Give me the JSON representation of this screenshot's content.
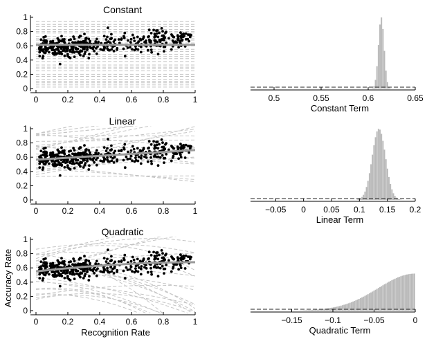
{
  "figure": {
    "ylabel": "Accuracy Rate",
    "xlabel": "Recognition Rate"
  },
  "chart_data": [
    {
      "type": "scatter",
      "title": "Constant",
      "xlabel": "",
      "ylabel": "",
      "xlim": [
        0,
        1
      ],
      "ylim": [
        0,
        1
      ],
      "xticks": [
        "0",
        "0.2",
        "0.4",
        "0.6",
        "0.8",
        "1"
      ],
      "yticks": [
        "0",
        "0.2",
        "0.4",
        "0.6",
        "0.8",
        "1"
      ],
      "fit": {
        "kind": "constant",
        "params": [
          0.615
        ]
      },
      "draws_model": "constant"
    },
    {
      "type": "bar",
      "title": "",
      "xlabel": "Constant Term",
      "xlim": [
        0.475,
        0.65
      ],
      "xticks": [
        "0.5",
        "0.55",
        "0.6",
        "0.65"
      ],
      "distribution": {
        "mean": 0.614,
        "sd": 0.003
      },
      "prior_level": 0.02
    },
    {
      "type": "scatter",
      "title": "Linear",
      "xlabel": "",
      "ylabel": "",
      "xlim": [
        0,
        1
      ],
      "ylim": [
        0,
        1
      ],
      "xticks": [
        "0",
        "0.2",
        "0.4",
        "0.6",
        "0.8",
        "1"
      ],
      "yticks": [
        "0",
        "0.2",
        "0.4",
        "0.6",
        "0.8",
        "1"
      ],
      "fit": {
        "kind": "linear",
        "params": [
          0.565,
          0.135
        ]
      },
      "draws_model": "linear"
    },
    {
      "type": "bar",
      "title": "",
      "xlabel": "Linear Term",
      "xlim": [
        -0.095,
        0.2
      ],
      "xticks": [
        "−0.05",
        "0",
        "0.05",
        "0.1",
        "0.15",
        "0.2"
      ],
      "distribution": {
        "mean": 0.135,
        "sd": 0.012
      },
      "prior_level": 0.02
    },
    {
      "type": "scatter",
      "title": "Quadratic",
      "xlabel": "Recognition Rate",
      "ylabel": "Accuracy Rate",
      "xlim": [
        0,
        1
      ],
      "ylim": [
        0,
        1
      ],
      "xticks": [
        "0",
        "0.2",
        "0.4",
        "0.6",
        "0.8",
        "1"
      ],
      "yticks": [
        "0",
        "0.2",
        "0.4",
        "0.6",
        "0.8",
        "1"
      ],
      "fit": {
        "kind": "quadratic",
        "params": [
          0.55,
          0.25,
          -0.12
        ]
      },
      "draws_model": "quadratic"
    },
    {
      "type": "bar",
      "title": "",
      "xlabel": "Quadratic Term",
      "xlim": [
        -0.2,
        0
      ],
      "xticks": [
        "−0.15",
        "−0.1",
        "−0.05",
        "0"
      ],
      "distribution": {
        "kind": "half",
        "peak": 0,
        "sd": 0.045
      },
      "prior_level": 0.02
    }
  ]
}
